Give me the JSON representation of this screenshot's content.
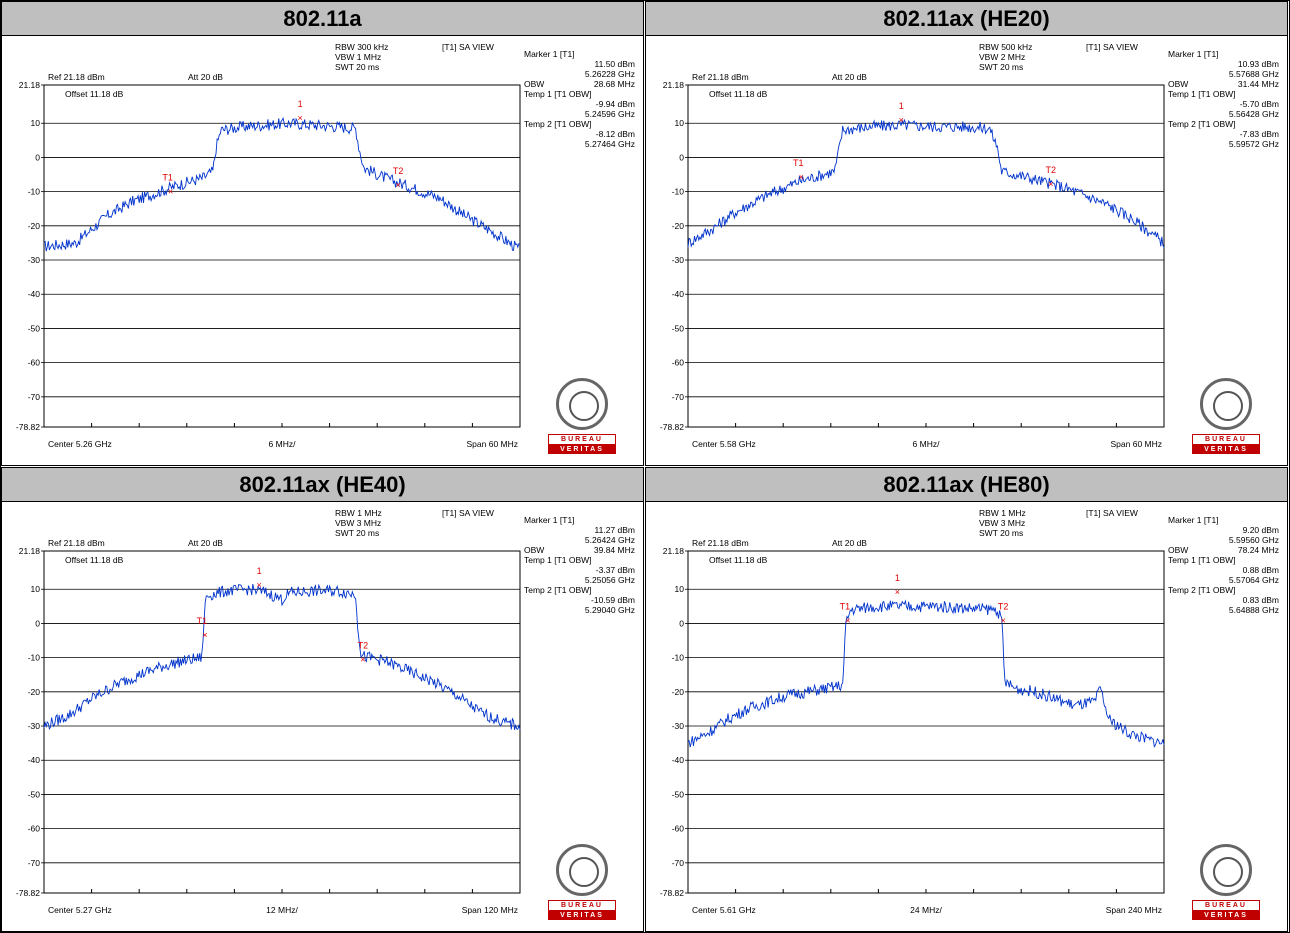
{
  "chart_data": [
    {
      "type": "line",
      "title": "802.11a",
      "settings": [
        "RBW 300 kHz",
        "VBW 1 MHz",
        "SWT 20 ms"
      ],
      "view_label": "[T1] SA VIEW",
      "ref_label": "Ref 21.18 dBm",
      "att_label": "Att  20 dB",
      "offset_label": "Offset 11.18 dB",
      "center_label": "Center 5.26 GHz",
      "div_label": "6 MHz/",
      "span_label": "Span 60 MHz",
      "ylim": [
        -78.82,
        21.18
      ],
      "yticks": [
        "21.18",
        "10",
        "0",
        "-10",
        "-20",
        "-30",
        "-40",
        "-50",
        "-60",
        "-70",
        "-78.82"
      ],
      "readout": [
        "Marker 1 [T1]",
        "11.50 dBm",
        "5.26228 GHz",
        "OBW",
        "28.68 MHz",
        "Temp 1 [T1 OBW]",
        "-9.94 dBm",
        "5.24596 GHz",
        "Temp 2 [T1 OBW]",
        "-8.12 dBm",
        "5.27464 GHz"
      ],
      "markers": [
        {
          "label": "1",
          "x": 5.26228,
          "y": 11.5
        },
        {
          "label": "T1",
          "x": 5.24596,
          "y": -9.94
        },
        {
          "label": "T2",
          "x": 5.27464,
          "y": -8.12
        }
      ],
      "x_range_ghz": [
        5.23,
        5.29
      ],
      "trace": [
        [
          5.23,
          -26
        ],
        [
          5.234,
          -25
        ],
        [
          5.236,
          -21
        ],
        [
          5.238,
          -17
        ],
        [
          5.241,
          -13
        ],
        [
          5.244,
          -10.5
        ],
        [
          5.247,
          -8
        ],
        [
          5.25,
          -6
        ],
        [
          5.2513,
          -4
        ],
        [
          5.2517,
          3
        ],
        [
          5.2523,
          8
        ],
        [
          5.255,
          9
        ],
        [
          5.258,
          9.5
        ],
        [
          5.261,
          10
        ],
        [
          5.264,
          9.5
        ],
        [
          5.267,
          9
        ],
        [
          5.2693,
          8.5
        ],
        [
          5.2697,
          3
        ],
        [
          5.2703,
          -3
        ],
        [
          5.273,
          -6
        ],
        [
          5.276,
          -8.5
        ],
        [
          5.28,
          -12
        ],
        [
          5.283,
          -17
        ],
        [
          5.286,
          -21
        ],
        [
          5.29,
          -27
        ]
      ]
    },
    {
      "type": "line",
      "title": "802.11ax (HE20)",
      "settings": [
        "RBW 500 kHz",
        "VBW 2 MHz",
        "SWT 20 ms"
      ],
      "view_label": "[T1] SA VIEW",
      "ref_label": "Ref 21.18 dBm",
      "att_label": "Att  20 dB",
      "offset_label": "Offset 11.18 dB",
      "center_label": "Center 5.58 GHz",
      "div_label": "6 MHz/",
      "span_label": "Span 60 MHz",
      "ylim": [
        -78.82,
        21.18
      ],
      "yticks": [
        "21.18",
        "10",
        "0",
        "-10",
        "-20",
        "-30",
        "-40",
        "-50",
        "-60",
        "-70",
        "-78.82"
      ],
      "readout": [
        "Marker 1 [T1]",
        "10.93 dBm",
        "5.57688 GHz",
        "OBW",
        "31.44 MHz",
        "Temp 1 [T1 OBW]",
        "-5.70 dBm",
        "5.56428 GHz",
        "Temp 2 [T1 OBW]",
        "-7.83 dBm",
        "5.59572 GHz"
      ],
      "markers": [
        {
          "label": "1",
          "x": 5.57688,
          "y": 10.93
        },
        {
          "label": "T1",
          "x": 5.56428,
          "y": -5.7
        },
        {
          "label": "T2",
          "x": 5.59572,
          "y": -7.83
        }
      ],
      "x_range_ghz": [
        5.55,
        5.61
      ],
      "trace": [
        [
          5.55,
          -25
        ],
        [
          5.553,
          -21
        ],
        [
          5.556,
          -16
        ],
        [
          5.56,
          -11
        ],
        [
          5.564,
          -7
        ],
        [
          5.5685,
          -4
        ],
        [
          5.569,
          2
        ],
        [
          5.5695,
          8
        ],
        [
          5.573,
          9
        ],
        [
          5.577,
          9.5
        ],
        [
          5.581,
          9
        ],
        [
          5.585,
          9
        ],
        [
          5.588,
          8.5
        ],
        [
          5.589,
          3
        ],
        [
          5.5895,
          -4
        ],
        [
          5.593,
          -6
        ],
        [
          5.597,
          -8.5
        ],
        [
          5.6,
          -11
        ],
        [
          5.603,
          -14
        ],
        [
          5.606,
          -18
        ],
        [
          5.61,
          -25
        ]
      ]
    },
    {
      "type": "line",
      "title": "802.11ax (HE40)",
      "settings": [
        "RBW 1 MHz",
        "VBW 3 MHz",
        "SWT 20 ms"
      ],
      "view_label": "[T1] SA VIEW",
      "ref_label": "Ref 21.18 dBm",
      "att_label": "Att  20 dB",
      "offset_label": "Offset 11.18 dB",
      "center_label": "Center 5.27 GHz",
      "div_label": "12 MHz/",
      "span_label": "Span 120 MHz",
      "ylim": [
        -78.82,
        21.18
      ],
      "yticks": [
        "21.18",
        "10",
        "0",
        "-10",
        "-20",
        "-30",
        "-40",
        "-50",
        "-60",
        "-70",
        "-78.82"
      ],
      "readout": [
        "Marker 1 [T1]",
        "11.27 dBm",
        "5.26424 GHz",
        "OBW",
        "39.84 MHz",
        "Temp 1 [T1 OBW]",
        "-3.37 dBm",
        "5.25056 GHz",
        "Temp 2 [T1 OBW]",
        "-10.59 dBm",
        "5.29040 GHz"
      ],
      "markers": [
        {
          "label": "1",
          "x": 5.26424,
          "y": 11.27
        },
        {
          "label": "T1",
          "x": 5.25056,
          "y": -3.37
        },
        {
          "label": "T2",
          "x": 5.2904,
          "y": -10.59
        }
      ],
      "x_range_ghz": [
        5.21,
        5.33
      ],
      "trace": [
        [
          5.21,
          -30
        ],
        [
          5.216,
          -27
        ],
        [
          5.222,
          -22
        ],
        [
          5.228,
          -18
        ],
        [
          5.234,
          -15
        ],
        [
          5.24,
          -12.5
        ],
        [
          5.245,
          -11
        ],
        [
          5.2498,
          -10
        ],
        [
          5.2502,
          -2
        ],
        [
          5.2508,
          8
        ],
        [
          5.256,
          9.5
        ],
        [
          5.262,
          10
        ],
        [
          5.266,
          9
        ],
        [
          5.27,
          7
        ],
        [
          5.272,
          9
        ],
        [
          5.278,
          9.5
        ],
        [
          5.284,
          9.5
        ],
        [
          5.2886,
          8.5
        ],
        [
          5.2892,
          -2
        ],
        [
          5.29,
          -9.5
        ],
        [
          5.296,
          -11
        ],
        [
          5.302,
          -14
        ],
        [
          5.308,
          -17
        ],
        [
          5.314,
          -21
        ],
        [
          5.32,
          -26
        ],
        [
          5.326,
          -29
        ],
        [
          5.33,
          -30
        ]
      ]
    },
    {
      "type": "line",
      "title": "802.11ax (HE80)",
      "settings": [
        "RBW 1 MHz",
        "VBW 3 MHz",
        "SWT 20 ms"
      ],
      "view_label": "[T1] SA VIEW",
      "ref_label": "Ref 21.18 dBm",
      "att_label": "Att  20 dB",
      "offset_label": "Offset 11.18 dB",
      "center_label": "Center 5.61 GHz",
      "div_label": "24 MHz/",
      "span_label": "Span 240 MHz",
      "ylim": [
        -78.82,
        21.18
      ],
      "yticks": [
        "21.18",
        "10",
        "0",
        "-10",
        "-20",
        "-30",
        "-40",
        "-50",
        "-60",
        "-70",
        "-78.82"
      ],
      "readout": [
        "Marker 1 [T1]",
        "9.20 dBm",
        "5.59560 GHz",
        "OBW",
        "78.24 MHz",
        "Temp 1 [T1 OBW]",
        "0.88 dBm",
        "5.57064 GHz",
        "Temp 2 [T1 OBW]",
        "0.83 dBm",
        "5.64888 GHz"
      ],
      "markers": [
        {
          "label": "1",
          "x": 5.5956,
          "y": 9.2
        },
        {
          "label": "T1",
          "x": 5.57064,
          "y": 0.88
        },
        {
          "label": "T2",
          "x": 5.64888,
          "y": 0.83
        }
      ],
      "x_range_ghz": [
        5.49,
        5.73
      ],
      "trace": [
        [
          5.49,
          -35
        ],
        [
          5.5,
          -32
        ],
        [
          5.51,
          -28
        ],
        [
          5.52,
          -25
        ],
        [
          5.53,
          -23
        ],
        [
          5.54,
          -21
        ],
        [
          5.55,
          -20
        ],
        [
          5.56,
          -19
        ],
        [
          5.568,
          -18
        ],
        [
          5.5696,
          0
        ],
        [
          5.572,
          4
        ],
        [
          5.585,
          5
        ],
        [
          5.6,
          5
        ],
        [
          5.615,
          5
        ],
        [
          5.63,
          4.5
        ],
        [
          5.646,
          4
        ],
        [
          5.6484,
          0
        ],
        [
          5.6496,
          -17
        ],
        [
          5.655,
          -19
        ],
        [
          5.665,
          -20
        ],
        [
          5.675,
          -22
        ],
        [
          5.685,
          -24
        ],
        [
          5.695,
          -23
        ],
        [
          5.698,
          -19
        ],
        [
          5.702,
          -28
        ],
        [
          5.712,
          -32
        ],
        [
          5.722,
          -34
        ],
        [
          5.73,
          -35
        ]
      ]
    }
  ]
}
